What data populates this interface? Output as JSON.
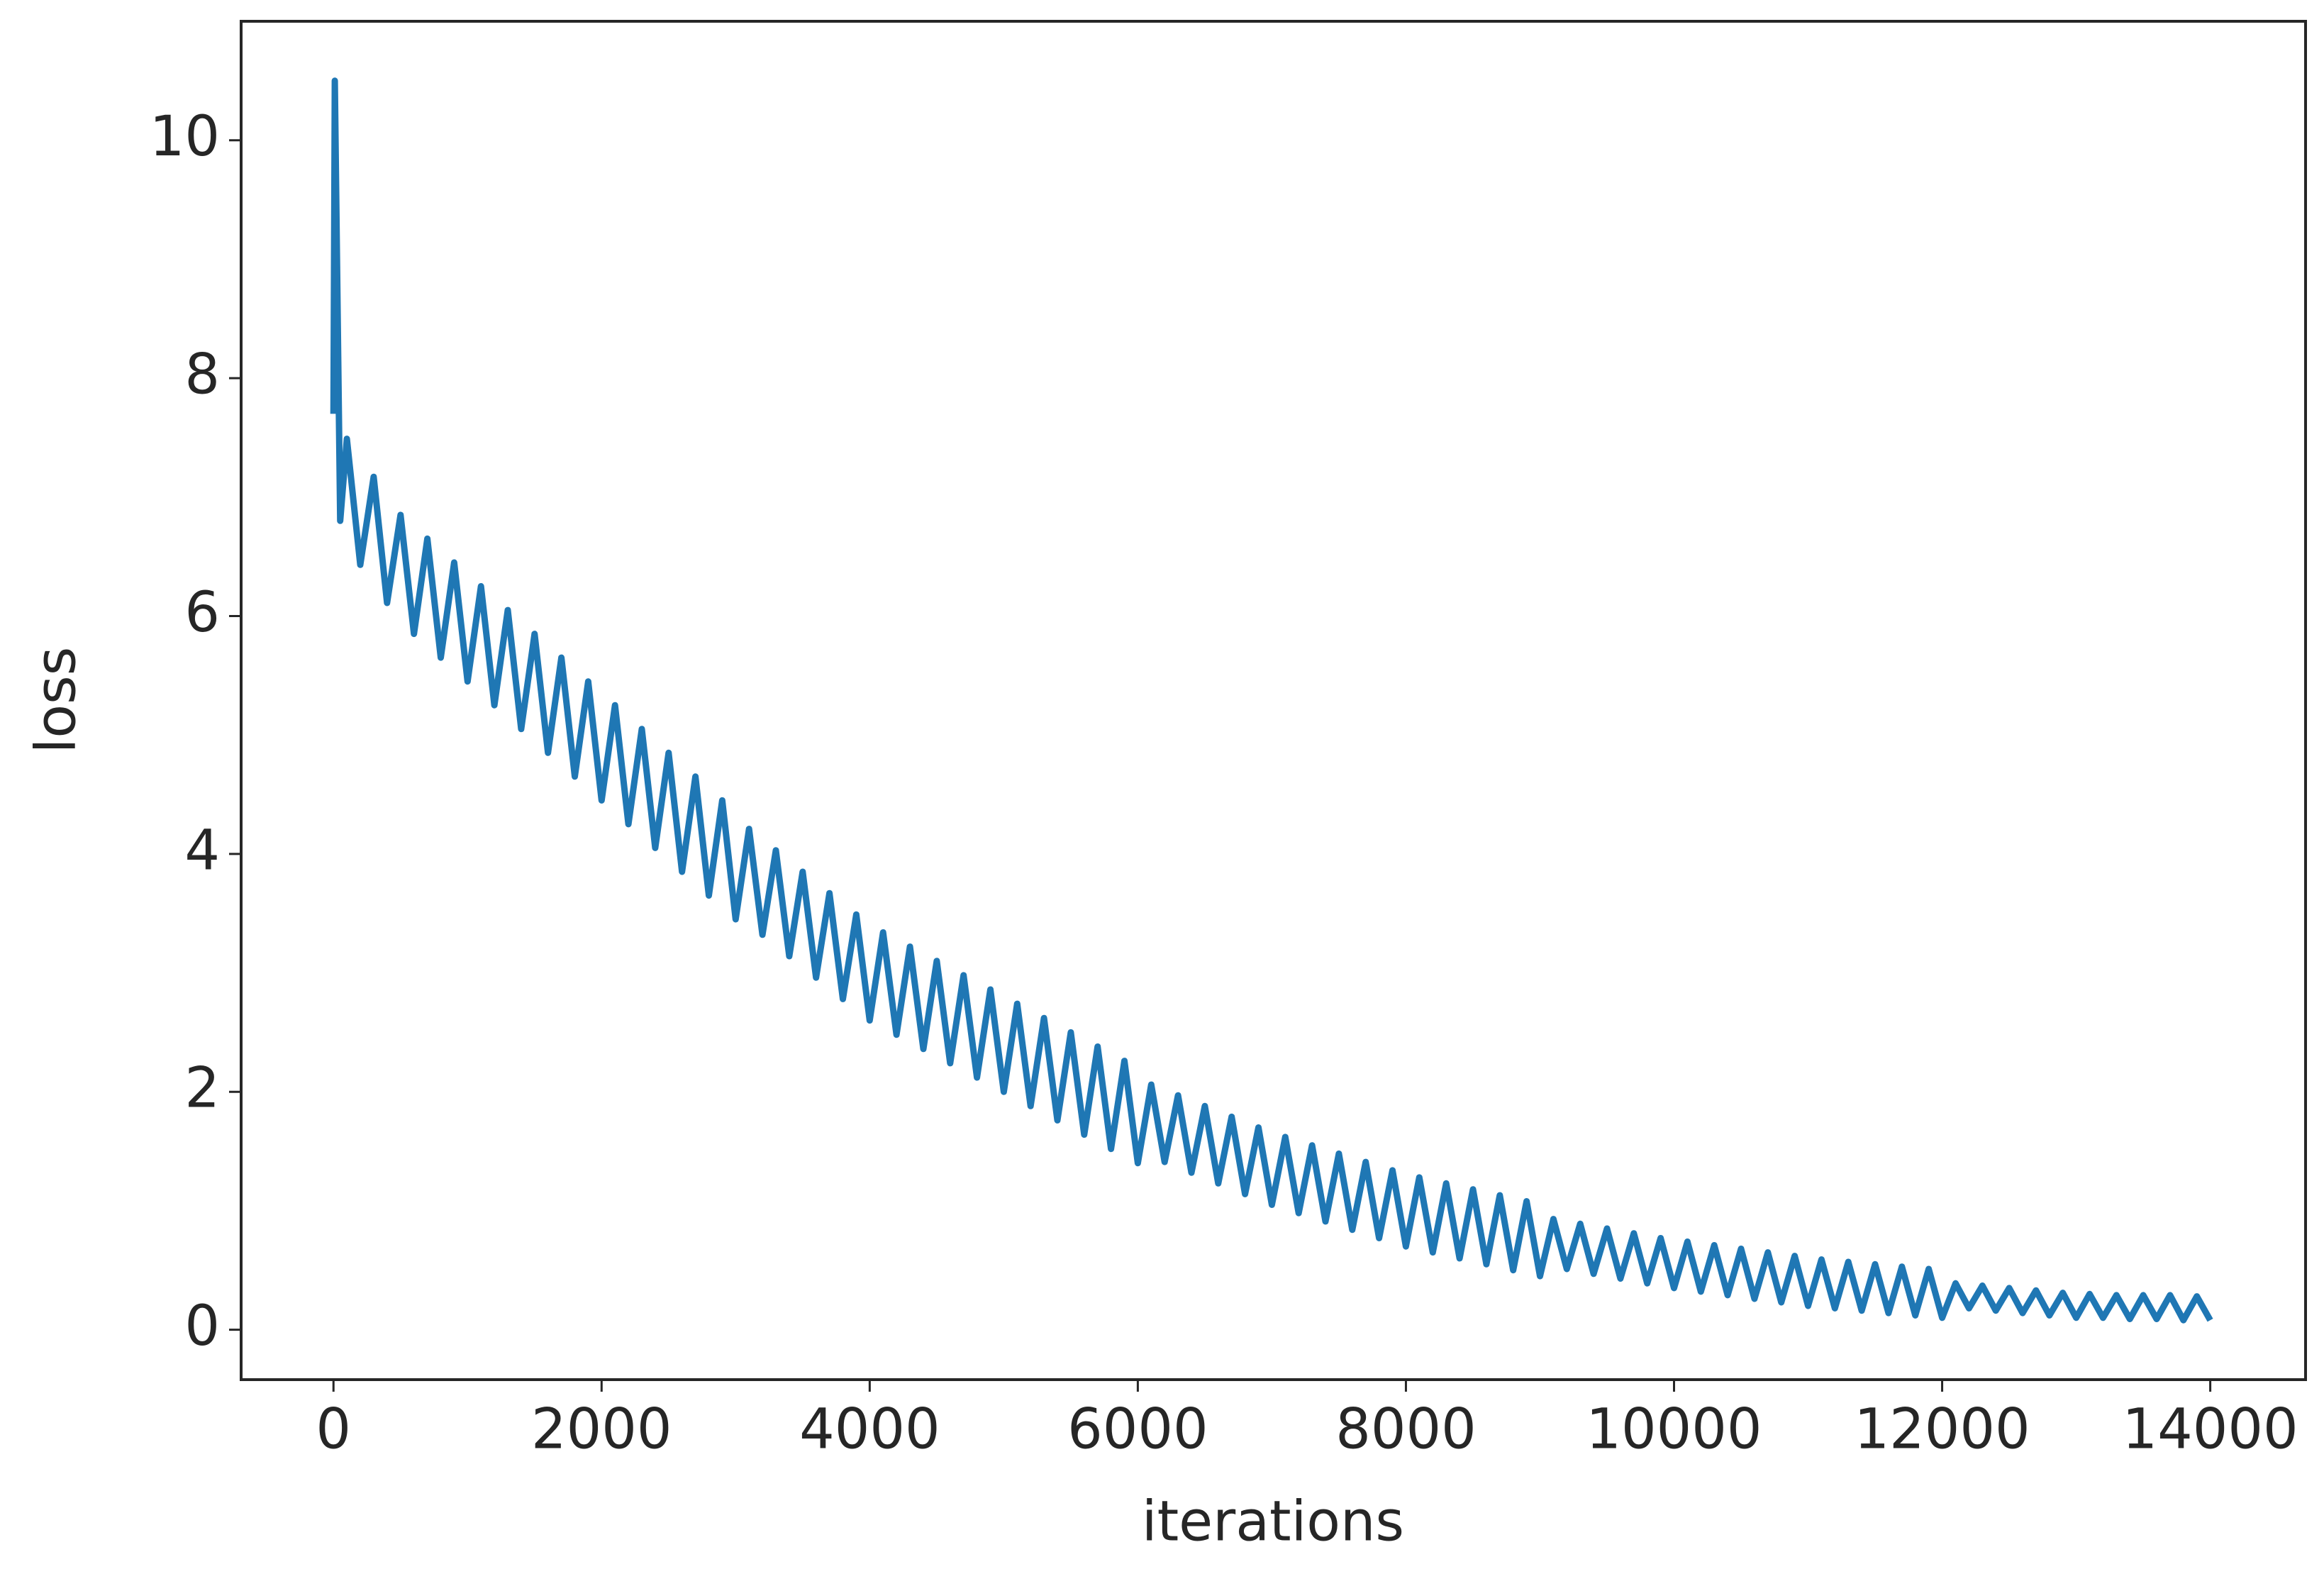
{
  "chart_data": {
    "type": "line",
    "xlabel": "iterations",
    "ylabel": "loss",
    "color": "#1f77b4",
    "xlim": [
      -689,
      14711
    ],
    "ylim": [
      -0.42,
      11.0
    ],
    "xticks": [
      0,
      2000,
      4000,
      6000,
      8000,
      10000,
      12000,
      14000
    ],
    "yticks": [
      0,
      2,
      4,
      6,
      8,
      10
    ],
    "grid": false,
    "x": [
      0,
      10,
      50,
      100,
      200,
      300,
      400,
      500,
      600,
      700,
      800,
      900,
      1000,
      1100,
      1200,
      1300,
      1400,
      1500,
      1600,
      1700,
      1800,
      1900,
      2000,
      2100,
      2200,
      2300,
      2400,
      2500,
      2600,
      2700,
      2800,
      2900,
      3000,
      3100,
      3200,
      3300,
      3400,
      3500,
      3600,
      3700,
      3800,
      3900,
      4000,
      4100,
      4200,
      4300,
      4400,
      4500,
      4600,
      4700,
      4800,
      4900,
      5000,
      5100,
      5200,
      5300,
      5400,
      5500,
      5600,
      5700,
      5800,
      5900,
      6000,
      6100,
      6200,
      6300,
      6400,
      6500,
      6600,
      6700,
      6800,
      6900,
      7000,
      7100,
      7200,
      7300,
      7400,
      7500,
      7600,
      7700,
      7800,
      7900,
      8000,
      8100,
      8200,
      8300,
      8400,
      8500,
      8600,
      8700,
      8800,
      8900,
      9000,
      9100,
      9200,
      9300,
      9400,
      9500,
      9600,
      9700,
      9800,
      9900,
      10000,
      10100,
      10200,
      10300,
      10400,
      10500,
      10600,
      10700,
      10800,
      10900,
      11000,
      11100,
      11200,
      11300,
      11400,
      11500,
      11600,
      11700,
      11800,
      11900,
      12000,
      12100,
      12200,
      12300,
      12400,
      12500,
      12600,
      12700,
      12800,
      12900,
      13000,
      13100,
      13200,
      13300,
      13400,
      13500,
      13600,
      13700,
      13800,
      13900,
      14000
    ],
    "values": [
      7.7,
      10.5,
      6.8,
      7.49,
      6.43,
      7.17,
      6.11,
      6.85,
      5.85,
      6.65,
      5.65,
      6.45,
      5.45,
      6.25,
      5.25,
      6.05,
      5.05,
      5.85,
      4.85,
      5.65,
      4.65,
      5.45,
      4.45,
      5.25,
      4.25,
      5.05,
      4.05,
      4.85,
      3.85,
      4.65,
      3.65,
      4.45,
      3.45,
      4.21,
      3.32,
      4.03,
      3.14,
      3.85,
      2.96,
      3.67,
      2.78,
      3.49,
      2.6,
      3.34,
      2.48,
      3.22,
      2.36,
      3.1,
      2.24,
      2.98,
      2.12,
      2.86,
      2.0,
      2.74,
      1.88,
      2.62,
      1.76,
      2.5,
      1.64,
      2.38,
      1.52,
      2.26,
      1.4,
      2.06,
      1.41,
      1.97,
      1.32,
      1.88,
      1.23,
      1.79,
      1.14,
      1.7,
      1.05,
      1.62,
      0.98,
      1.55,
      0.91,
      1.48,
      0.84,
      1.41,
      0.77,
      1.34,
      0.7,
      1.28,
      0.65,
      1.23,
      0.6,
      1.18,
      0.55,
      1.13,
      0.5,
      1.08,
      0.45,
      0.93,
      0.51,
      0.89,
      0.47,
      0.85,
      0.43,
      0.81,
      0.39,
      0.77,
      0.35,
      0.74,
      0.32,
      0.71,
      0.29,
      0.68,
      0.26,
      0.65,
      0.23,
      0.62,
      0.2,
      0.59,
      0.18,
      0.57,
      0.16,
      0.55,
      0.14,
      0.53,
      0.12,
      0.51,
      0.1,
      0.39,
      0.18,
      0.37,
      0.16,
      0.35,
      0.14,
      0.33,
      0.12,
      0.31,
      0.1,
      0.3,
      0.1,
      0.29,
      0.09,
      0.29,
      0.09,
      0.29,
      0.08,
      0.28,
      0.08
    ]
  }
}
